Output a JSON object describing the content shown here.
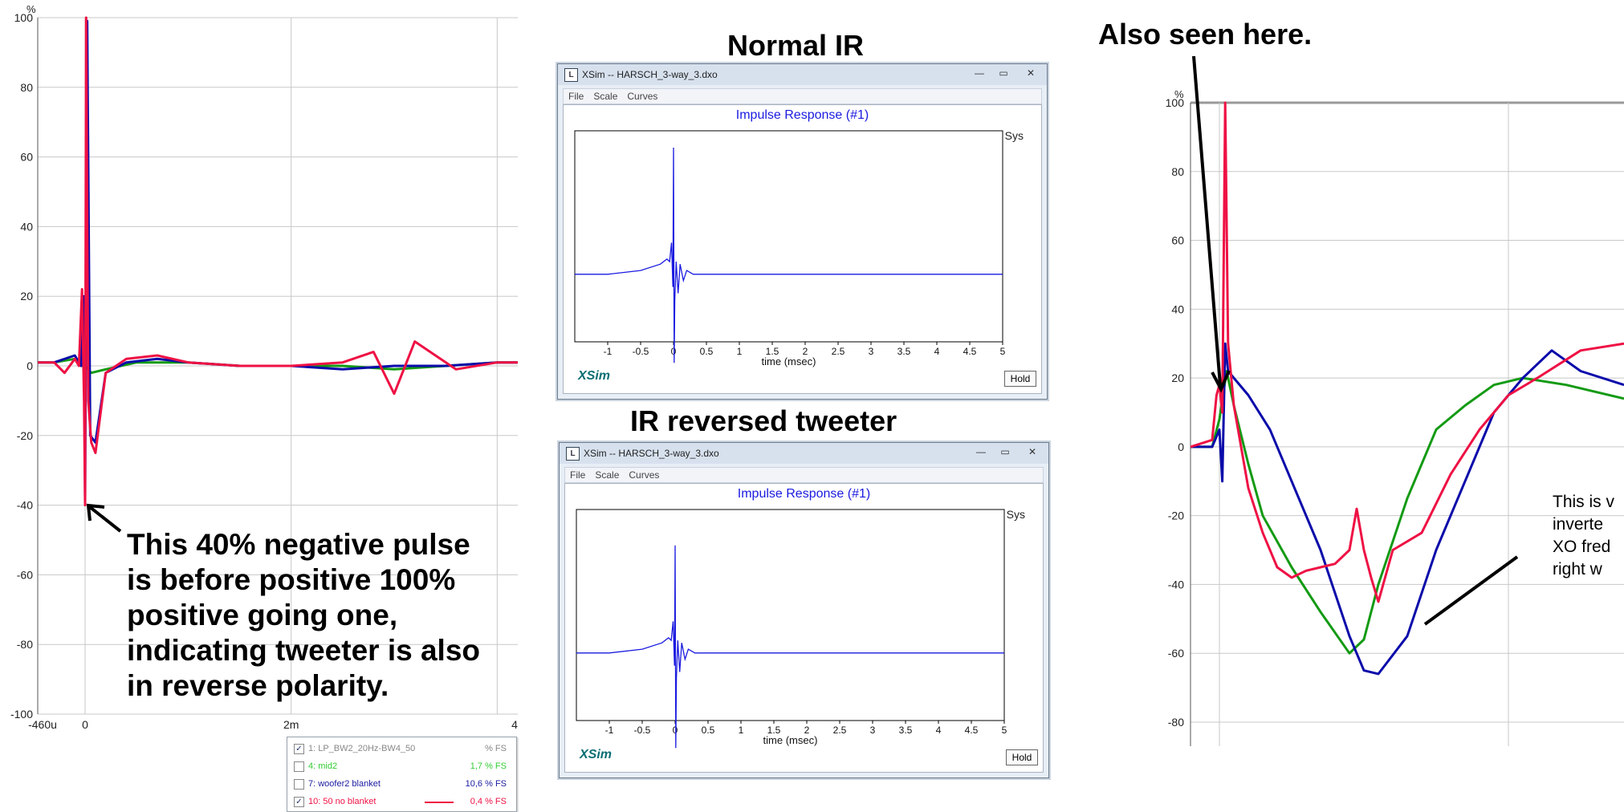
{
  "headings": {
    "normal_ir": "Normal IR",
    "ir_reversed": "IR reversed tweeter",
    "also_seen": "Also seen here."
  },
  "annotations": {
    "left_note_lines": [
      "This 40% negative pulse",
      "is before positive 100%",
      "positive going one,",
      "indicating tweeter is also",
      "in reverse polarity."
    ],
    "right_note_lines": [
      "This is v",
      "inverte",
      "XO fred",
      "right w"
    ]
  },
  "colors": {
    "red": "#ee1144",
    "blue": "#0a0aaa",
    "green": "#139a13",
    "xsim_blue": "#1a1ae0",
    "grid": "#c8c8c8"
  },
  "xsim_window": {
    "title": "XSim -- HARSCH_3-way_3.dxo",
    "menu": [
      "File",
      "Scale",
      "Curves"
    ],
    "plot_title": "Impulse Response (#1)",
    "legend": "Sys",
    "brand": "XSim",
    "hold_button": "Hold",
    "icons": [
      "app-icon",
      "minimize-icon",
      "maximize-icon",
      "close-icon"
    ]
  },
  "legend_panel": {
    "rows": [
      {
        "label": "1: LP_BW2_20Hz-BW4_50",
        "value": "% FS",
        "checked": true,
        "color": "#888888"
      },
      {
        "label": "4: mid2",
        "value": "1,7 % FS",
        "checked": false,
        "color": "#33cc33"
      },
      {
        "label": "7: woofer2 blanket",
        "value": "10,6 % FS",
        "checked": false,
        "color": "#1a1aa0"
      },
      {
        "label": "10: 50 no blanket",
        "value": "0,4 % FS",
        "checked": true,
        "color": "#ee1144"
      }
    ]
  },
  "chart_data": [
    {
      "type": "line",
      "title": "",
      "ylabel": "%",
      "xlabel": "",
      "ylim": [
        -100,
        100
      ],
      "yticks": [
        100,
        80,
        60,
        40,
        20,
        0,
        -20,
        -40,
        -60,
        -80,
        -100
      ],
      "xtick_labels": [
        "-460u",
        "0",
        "2m",
        "4"
      ],
      "grid": true,
      "series": [
        {
          "color_key": "green",
          "x_ms": [
            -0.46,
            -0.3,
            -0.1,
            -0.04,
            0,
            0.06,
            0.2,
            0.5,
            1,
            1.5,
            2,
            2.5,
            3,
            3.5,
            4,
            4.2
          ],
          "y": [
            1,
            1,
            2,
            0,
            0,
            -2,
            -1,
            1,
            1,
            0,
            0,
            0,
            -1,
            0,
            1,
            1
          ]
        },
        {
          "color_key": "blue",
          "x_ms": [
            -0.46,
            -0.3,
            -0.1,
            -0.04,
            -0.01,
            0,
            0.02,
            0.05,
            0.1,
            0.2,
            0.4,
            0.7,
            1,
            1.5,
            2,
            2.5,
            3,
            3.5,
            4,
            4.2
          ],
          "y": [
            1,
            1,
            3,
            0,
            20,
            -39,
            99,
            -20,
            -22,
            -2,
            1,
            2,
            1,
            0,
            0,
            -1,
            0,
            0,
            1,
            1
          ]
        },
        {
          "color_key": "red",
          "x_ms": [
            -0.46,
            -0.3,
            -0.2,
            -0.1,
            -0.06,
            -0.03,
            -0.01,
            0,
            0.01,
            0.03,
            0.06,
            0.1,
            0.2,
            0.4,
            0.7,
            1,
            1.5,
            2,
            2.5,
            2.8,
            3,
            3.2,
            3.6,
            4,
            4.2
          ],
          "y": [
            1,
            1,
            -2,
            2,
            0,
            22,
            -10,
            -40,
            100,
            -10,
            -22,
            -25,
            -2,
            2,
            3,
            1,
            0,
            0,
            1,
            4,
            -8,
            7,
            -1,
            1,
            1
          ]
        }
      ]
    },
    {
      "type": "line",
      "title": "Impulse Response (#1)",
      "xlabel": "time (msec)",
      "xlim": [
        -1.5,
        5
      ],
      "xticks": [
        -1,
        -0.5,
        0,
        0.5,
        1,
        1.5,
        2,
        2.5,
        3,
        3.5,
        4,
        4.5,
        5
      ],
      "series": [
        {
          "name": "Sys",
          "x": [
            -1.5,
            -1,
            -0.5,
            -0.2,
            -0.1,
            -0.06,
            -0.03,
            -0.01,
            0,
            0.01,
            0.02,
            0.04,
            0.07,
            0.1,
            0.15,
            0.2,
            0.3,
            0.5,
            1,
            5
          ],
          "y": [
            0,
            0,
            0.03,
            0.08,
            0.12,
            0.1,
            0.25,
            -0.1,
            1.0,
            -0.7,
            -0.2,
            0.1,
            -0.15,
            0.08,
            -0.05,
            0.03,
            0,
            0,
            0,
            0
          ]
        }
      ]
    },
    {
      "type": "line",
      "title": "Impulse Response (#1)",
      "xlabel": "time (msec)",
      "xlim": [
        -1.5,
        5
      ],
      "xticks": [
        -1,
        -0.5,
        0,
        0.5,
        1,
        1.5,
        2,
        2.5,
        3,
        3.5,
        4,
        4.5,
        5
      ],
      "series": [
        {
          "name": "Sys",
          "x": [
            -1.5,
            -1,
            -0.5,
            -0.2,
            -0.1,
            -0.06,
            -0.03,
            -0.01,
            0,
            0.01,
            0.02,
            0.04,
            0.07,
            0.1,
            0.15,
            0.2,
            0.3,
            0.5,
            1,
            5
          ],
          "y": [
            0,
            0,
            0.03,
            0.08,
            0.12,
            0.1,
            0.25,
            -0.1,
            0.85,
            -0.75,
            -0.2,
            0.1,
            -0.15,
            0.08,
            -0.05,
            0.03,
            0,
            0,
            0,
            0
          ]
        }
      ]
    },
    {
      "type": "line",
      "title": "",
      "ylabel": "%",
      "xlabel": "",
      "ylim": [
        -85,
        100
      ],
      "yticks": [
        100,
        80,
        60,
        40,
        20,
        0,
        -20,
        -40,
        -60,
        -80
      ],
      "grid": true,
      "series": [
        {
          "color_key": "green",
          "x_ms": [
            -0.2,
            -0.05,
            0,
            0.05,
            0.1,
            0.2,
            0.3,
            0.5,
            0.7,
            0.9,
            1.0,
            1.1,
            1.3,
            1.5,
            1.7,
            1.9,
            2.1,
            2.4,
            2.8
          ],
          "y": [
            0,
            0,
            8,
            22,
            12,
            -5,
            -20,
            -35,
            -48,
            -60,
            -56,
            -40,
            -15,
            5,
            12,
            18,
            20,
            18,
            14
          ]
        },
        {
          "color_key": "blue",
          "x_ms": [
            -0.2,
            -0.05,
            0,
            0.02,
            0.04,
            0.06,
            0.1,
            0.2,
            0.35,
            0.5,
            0.7,
            0.9,
            1.0,
            1.1,
            1.3,
            1.5,
            1.7,
            1.9,
            2.1,
            2.3,
            2.5,
            2.8
          ],
          "y": [
            0,
            0,
            5,
            -10,
            30,
            22,
            20,
            15,
            5,
            -10,
            -30,
            -55,
            -65,
            -66,
            -55,
            -30,
            -10,
            10,
            20,
            28,
            22,
            18
          ]
        },
        {
          "color_key": "red",
          "x_ms": [
            -0.2,
            -0.05,
            -0.02,
            0,
            0.02,
            0.04,
            0.06,
            0.1,
            0.2,
            0.3,
            0.4,
            0.5,
            0.6,
            0.7,
            0.8,
            0.9,
            0.95,
            1.0,
            1.05,
            1.1,
            1.2,
            1.4,
            1.6,
            1.8,
            2.0,
            2.2,
            2.5,
            2.8
          ],
          "y": [
            0,
            2,
            15,
            18,
            10,
            100,
            30,
            12,
            -12,
            -25,
            -35,
            -38,
            -36,
            -35,
            -34,
            -30,
            -18,
            -30,
            -38,
            -45,
            -30,
            -25,
            -8,
            5,
            15,
            20,
            28,
            30
          ]
        }
      ]
    }
  ]
}
